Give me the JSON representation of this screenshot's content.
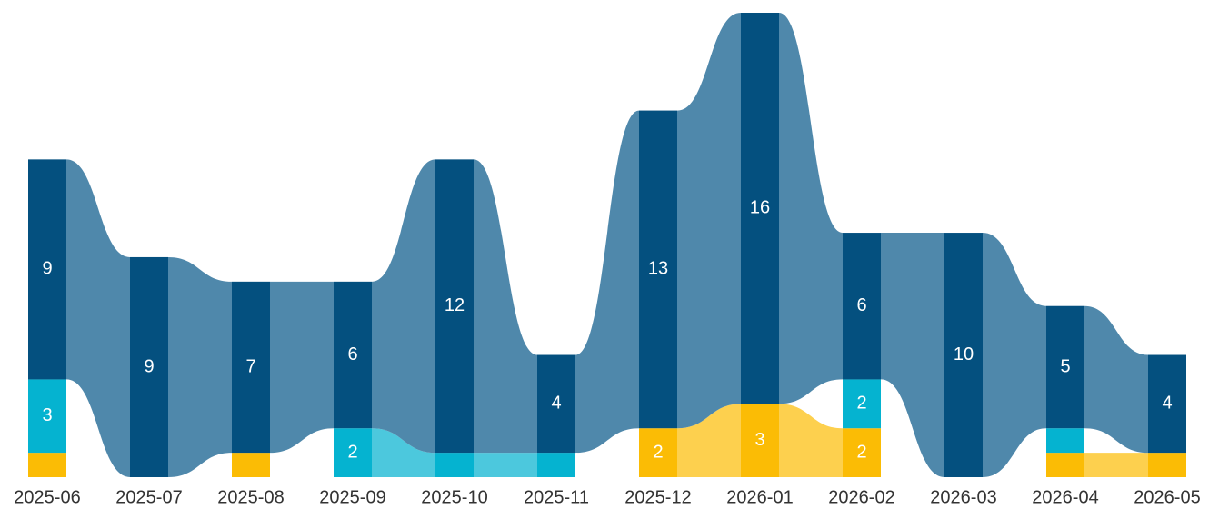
{
  "chart_data": {
    "type": "flow-bar",
    "categories": [
      "2025-06",
      "2025-07",
      "2025-08",
      "2025-09",
      "2025-10",
      "2025-11",
      "2025-12",
      "2026-01",
      "2026-02",
      "2026-03",
      "2026-04",
      "2026-05"
    ],
    "series": [
      {
        "color": "#fbbc05",
        "flow_color": "#fdd04e",
        "values": [
          1,
          0,
          1,
          0,
          0,
          0,
          2,
          3,
          2,
          0,
          1,
          1
        ]
      },
      {
        "color": "#05b3d0",
        "flow_color": "#4cc8dd",
        "values": [
          3,
          0,
          0,
          2,
          1,
          1,
          0,
          0,
          2,
          0,
          1,
          0
        ]
      },
      {
        "color": "#04507f",
        "flow_color": "#4f88ab",
        "values": [
          9,
          9,
          7,
          6,
          12,
          4,
          13,
          16,
          6,
          10,
          5,
          4
        ]
      }
    ],
    "ylim": [
      0,
      19
    ]
  }
}
